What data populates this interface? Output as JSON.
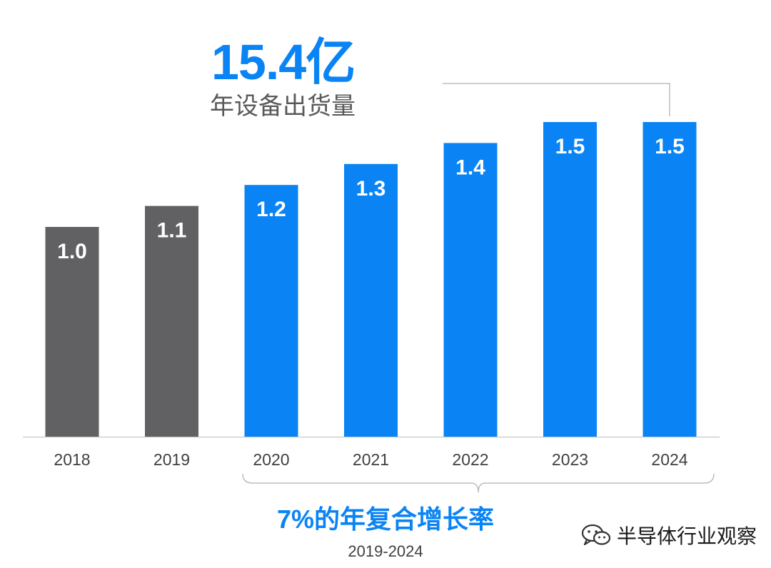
{
  "headline": {
    "value": "15.4亿",
    "subtitle": "年设备出货量"
  },
  "cagr": {
    "label": "7%的年复合增长率",
    "range": "2019-2024"
  },
  "watermark": {
    "text": "半导体行业观察",
    "icon": "wechat-icon"
  },
  "colors": {
    "historical": "#616163",
    "forecast": "#0a84f5",
    "accent_text": "#0a84f5",
    "bar_label": "#ffffff",
    "axis": "#cfcfcf",
    "bracket": "#bdbdbd"
  },
  "chart_data": {
    "type": "bar",
    "categories": [
      "2018",
      "2019",
      "2020",
      "2021",
      "2022",
      "2023",
      "2024"
    ],
    "values": [
      1.0,
      1.1,
      1.2,
      1.3,
      1.4,
      1.5,
      1.5
    ],
    "data_labels": [
      "1.0",
      "1.1",
      "1.2",
      "1.3",
      "1.4",
      "1.5",
      "1.5"
    ],
    "series_kind": [
      "historical",
      "historical",
      "forecast",
      "forecast",
      "forecast",
      "forecast",
      "forecast"
    ],
    "title": "",
    "xlabel": "",
    "ylabel": "",
    "grid": false,
    "legend": "none"
  }
}
